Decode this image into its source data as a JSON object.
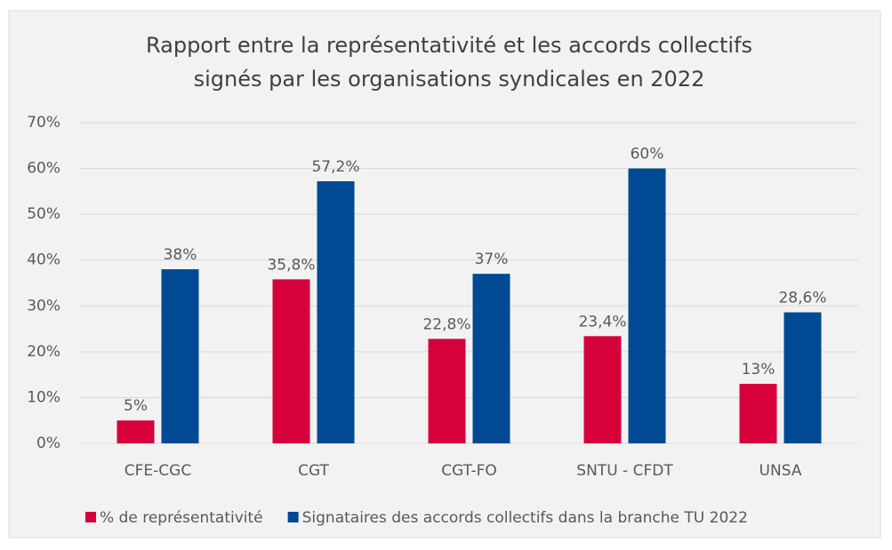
{
  "chart_data": {
    "type": "bar",
    "title": [
      "Rapport entre la représentativité et les accords collectifs",
      "signés par les organisations syndicales en 2022"
    ],
    "categories": [
      "CFE-CGC",
      "CGT",
      "CGT-FO",
      "SNTU - CFDT",
      "UNSA"
    ],
    "series": [
      {
        "name": "% de représentativité",
        "color": "#d6003b",
        "values": [
          5,
          35.8,
          22.8,
          23.4,
          13
        ],
        "value_labels": [
          "5%",
          "35,8%",
          "22,8%",
          "23,4%",
          "13%"
        ]
      },
      {
        "name": "Signataires des accords collectifs dans la branche TU 2022",
        "color": "#004a93",
        "values": [
          38,
          57.2,
          37,
          60,
          28.6
        ],
        "value_labels": [
          "38%",
          "57,2%",
          "37%",
          "60%",
          "28,6%"
        ]
      }
    ],
    "ylim": [
      0,
      70
    ],
    "yticks": [
      {
        "value": 0,
        "label": "0%"
      },
      {
        "value": 10,
        "label": "10%"
      },
      {
        "value": 20,
        "label": "20%"
      },
      {
        "value": 30,
        "label": "30%"
      },
      {
        "value": 40,
        "label": "40%"
      },
      {
        "value": 50,
        "label": "50%"
      },
      {
        "value": 60,
        "label": "60%"
      },
      {
        "value": 70,
        "label": "70%"
      }
    ],
    "grid": true,
    "legend": "bottom"
  }
}
